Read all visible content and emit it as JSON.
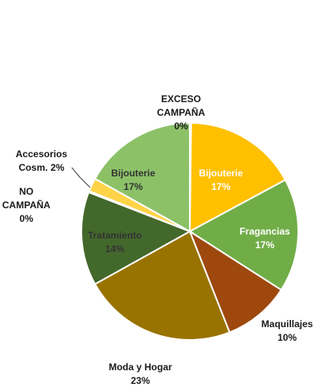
{
  "chart_data": {
    "type": "pie",
    "title": "",
    "legend": "none",
    "slices": [
      {
        "name": "EXCESO CAMPAÑA",
        "label_lines": [
          "EXCESO",
          "CAMPAÑA",
          "0%"
        ],
        "value": 0.2,
        "color": "#f5c242"
      },
      {
        "name": "Bijouterie",
        "label_lines": [
          "Bijouterie",
          "17%"
        ],
        "value": 17,
        "color": "#ffc000"
      },
      {
        "name": "Fragancias",
        "label_lines": [
          "Fragancias",
          "17%"
        ],
        "value": 17,
        "color": "#70ad47"
      },
      {
        "name": "Maquillajes",
        "label_lines": [
          "Maquillajes",
          "10%"
        ],
        "value": 10,
        "color": "#9e480e"
      },
      {
        "name": "Moda y Hogar",
        "label_lines": [
          "Moda y Hogar",
          "23%"
        ],
        "value": 23,
        "color": "#997300"
      },
      {
        "name": "Tratamiento",
        "label_lines": [
          "Tratamiento",
          "14%"
        ],
        "value": 14,
        "color": "#43682b"
      },
      {
        "name": "NO CAMPAÑA",
        "label_lines": [
          "NO",
          "CAMPAÑA",
          "0%"
        ],
        "value": 0.2,
        "color": "#cccccc"
      },
      {
        "name": "Accesorios Cosm.",
        "label_lines": [
          "Accesorios",
          "Cosm. 2%"
        ],
        "value": 2,
        "color": "#ffd347"
      },
      {
        "name": "Bijouterie",
        "label_lines": [
          "Bijouterie",
          "17%"
        ],
        "value": 17,
        "color": "#8cc168"
      }
    ],
    "label_colors": {
      "outside": "#1a1a1a",
      "inside_dark": "#333333",
      "inside_light": "#ffffff"
    }
  }
}
